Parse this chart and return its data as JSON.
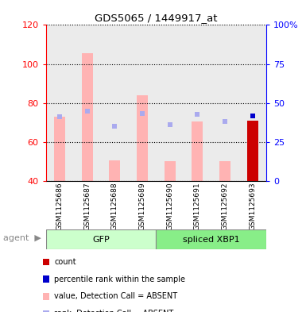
{
  "title": "GDS5065 / 1449917_at",
  "samples": [
    "GSM1125686",
    "GSM1125687",
    "GSM1125688",
    "GSM1125689",
    "GSM1125690",
    "GSM1125691",
    "GSM1125692",
    "GSM1125693"
  ],
  "groups": [
    {
      "name": "GFP",
      "indices": [
        0,
        1,
        2,
        3
      ]
    },
    {
      "name": "spliced XBP1",
      "indices": [
        4,
        5,
        6,
        7
      ]
    }
  ],
  "value_absent": [
    73.0,
    105.5,
    50.5,
    84.0,
    50.0,
    70.5,
    50.0,
    null
  ],
  "rank_absent": [
    41.0,
    45.0,
    35.0,
    43.0,
    36.0,
    42.5,
    38.0,
    null
  ],
  "value_present": [
    null,
    null,
    null,
    null,
    null,
    null,
    null,
    71.0
  ],
  "rank_present": [
    null,
    null,
    null,
    null,
    null,
    null,
    null,
    41.5
  ],
  "ylim_left": [
    40,
    120
  ],
  "ylim_right": [
    0,
    100
  ],
  "yticks_left": [
    40,
    60,
    80,
    100,
    120
  ],
  "yticks_right": [
    0,
    25,
    50,
    75,
    100
  ],
  "bar_width": 0.4,
  "absent_value_color": "#ffb3b3",
  "absent_rank_color": "#aaaaee",
  "present_value_color": "#cc0000",
  "present_rank_color": "#0000cc",
  "background_color": "#ffffff",
  "gfp_color": "#ccffcc",
  "xbp1_color": "#88ee88",
  "col_bg_color": "#d8d8d8",
  "legend_items": [
    {
      "label": "count",
      "color": "#cc0000"
    },
    {
      "label": "percentile rank within the sample",
      "color": "#0000cc"
    },
    {
      "label": "value, Detection Call = ABSENT",
      "color": "#ffb3b3"
    },
    {
      "label": "rank, Detection Call = ABSENT",
      "color": "#aaaaee"
    }
  ]
}
